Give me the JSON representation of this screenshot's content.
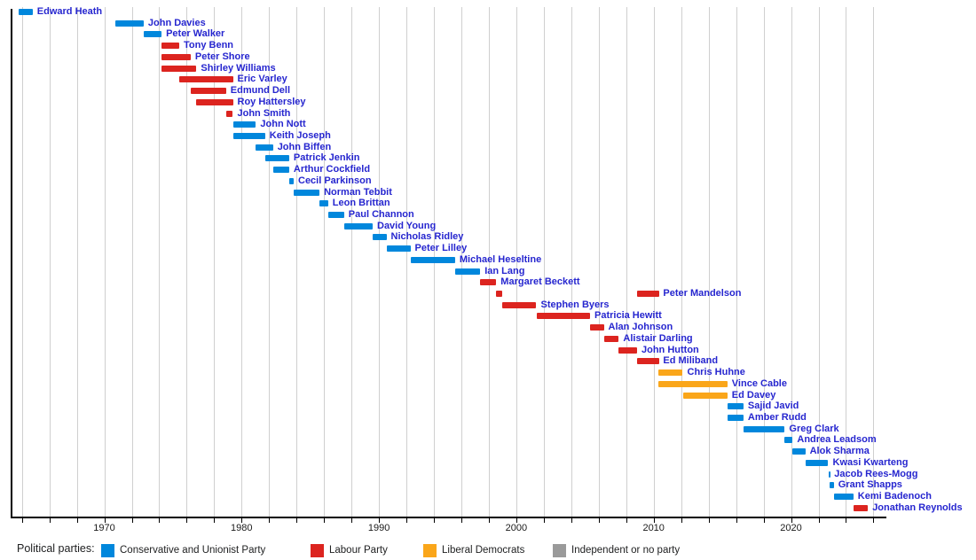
{
  "chart_data": {
    "type": "timeline",
    "title": "",
    "legend_title": "Political parties:",
    "x_axis": {
      "tick_years": [
        1970,
        1980,
        1990,
        2000,
        2010,
        2020
      ],
      "range": [
        1963.1,
        2026.8
      ],
      "gridlines": {
        "start": 1964,
        "end": 2026,
        "step": 2
      }
    },
    "parties": {
      "conservative": {
        "label": "Conservative and Unionist Party",
        "color": "#0087DC"
      },
      "labour": {
        "label": "Labour Party",
        "color": "#DC241F"
      },
      "libdem": {
        "label": "Liberal Democrats",
        "color": "#FAA61A"
      },
      "independent": {
        "label": "Independent or no party",
        "color": "#9A9A9A"
      }
    },
    "legend_order": [
      "conservative",
      "labour",
      "libdem",
      "independent"
    ],
    "people": [
      {
        "name": "Edward Heath",
        "party": "conservative",
        "terms": [
          [
            1963.79,
            1964.79
          ]
        ]
      },
      {
        "name": "John Davies",
        "party": "conservative",
        "terms": [
          [
            1970.79,
            1972.87
          ]
        ]
      },
      {
        "name": "Peter Walker",
        "party": "conservative",
        "terms": [
          [
            1972.87,
            1974.17
          ]
        ]
      },
      {
        "name": "Tony Benn",
        "party": "labour",
        "terms": [
          [
            1974.17,
            1975.46
          ]
        ]
      },
      {
        "name": "Peter Shore",
        "party": "labour",
        "terms": [
          [
            1974.17,
            1976.29
          ]
        ]
      },
      {
        "name": "Shirley Williams",
        "party": "labour",
        "terms": [
          [
            1974.17,
            1976.71
          ]
        ]
      },
      {
        "name": "Eric Varley",
        "party": "labour",
        "terms": [
          [
            1975.46,
            1979.37
          ]
        ]
      },
      {
        "name": "Edmund Dell",
        "party": "labour",
        "terms": [
          [
            1976.29,
            1978.87
          ]
        ]
      },
      {
        "name": "Roy Hattersley",
        "party": "labour",
        "terms": [
          [
            1976.71,
            1979.37
          ]
        ]
      },
      {
        "name": "John Smith",
        "party": "labour",
        "terms": [
          [
            1978.87,
            1979.37
          ]
        ]
      },
      {
        "name": "John Nott",
        "party": "conservative",
        "terms": [
          [
            1979.37,
            1981.04
          ]
        ]
      },
      {
        "name": "Keith Joseph",
        "party": "conservative",
        "terms": [
          [
            1979.37,
            1981.71
          ]
        ]
      },
      {
        "name": "John Biffen",
        "party": "conservative",
        "terms": [
          [
            1981.04,
            1982.29
          ]
        ]
      },
      {
        "name": "Patrick Jenkin",
        "party": "conservative",
        "terms": [
          [
            1981.71,
            1983.46
          ]
        ]
      },
      {
        "name": "Arthur Cockfield",
        "party": "conservative",
        "terms": [
          [
            1982.29,
            1983.46
          ]
        ]
      },
      {
        "name": "Cecil Parkinson",
        "party": "conservative",
        "terms": [
          [
            1983.46,
            1983.79
          ]
        ]
      },
      {
        "name": "Norman Tebbit",
        "party": "conservative",
        "terms": [
          [
            1983.79,
            1985.67
          ]
        ]
      },
      {
        "name": "Leon Brittan",
        "party": "conservative",
        "terms": [
          [
            1985.67,
            1986.3
          ]
        ]
      },
      {
        "name": "Paul Channon",
        "party": "conservative",
        "terms": [
          [
            1986.3,
            1987.46
          ]
        ]
      },
      {
        "name": "David Young",
        "party": "conservative",
        "terms": [
          [
            1987.46,
            1989.54
          ]
        ]
      },
      {
        "name": "Nicholas Ridley",
        "party": "conservative",
        "terms": [
          [
            1989.54,
            1990.54
          ]
        ]
      },
      {
        "name": "Peter Lilley",
        "party": "conservative",
        "terms": [
          [
            1990.54,
            1992.29
          ]
        ]
      },
      {
        "name": "Michael Heseltine",
        "party": "conservative",
        "terms": [
          [
            1992.29,
            1995.54
          ]
        ]
      },
      {
        "name": "Ian Lang",
        "party": "conservative",
        "terms": [
          [
            1995.54,
            1997.37
          ]
        ]
      },
      {
        "name": "Margaret Beckett",
        "party": "labour",
        "terms": [
          [
            1997.37,
            1998.54
          ]
        ]
      },
      {
        "name": "Peter Mandelson",
        "party": "labour",
        "terms": [
          [
            1998.54,
            1998.96
          ],
          [
            2008.79,
            2010.37
          ]
        ]
      },
      {
        "name": "Stephen Byers",
        "party": "labour",
        "terms": [
          [
            1998.96,
            2001.46
          ]
        ]
      },
      {
        "name": "Patricia Hewitt",
        "party": "labour",
        "terms": [
          [
            2001.46,
            2005.37
          ]
        ]
      },
      {
        "name": "Alan Johnson",
        "party": "labour",
        "terms": [
          [
            2005.37,
            2006.37
          ]
        ]
      },
      {
        "name": "Alistair Darling",
        "party": "labour",
        "terms": [
          [
            2006.37,
            2007.46
          ]
        ]
      },
      {
        "name": "John Hutton",
        "party": "labour",
        "terms": [
          [
            2007.46,
            2008.79
          ]
        ]
      },
      {
        "name": "Ed Miliband",
        "party": "labour",
        "terms": [
          [
            2008.79,
            2010.37
          ]
        ]
      },
      {
        "name": "Chris Huhne",
        "party": "libdem",
        "terms": [
          [
            2010.37,
            2012.12
          ]
        ]
      },
      {
        "name": "Vince Cable",
        "party": "libdem",
        "terms": [
          [
            2010.37,
            2015.37
          ]
        ]
      },
      {
        "name": "Ed Davey",
        "party": "libdem",
        "terms": [
          [
            2012.12,
            2015.37
          ]
        ]
      },
      {
        "name": "Sajid Javid",
        "party": "conservative",
        "terms": [
          [
            2015.37,
            2016.54
          ]
        ]
      },
      {
        "name": "Amber Rudd",
        "party": "conservative",
        "terms": [
          [
            2015.37,
            2016.54
          ]
        ]
      },
      {
        "name": "Greg Clark",
        "party": "conservative",
        "terms": [
          [
            2016.54,
            2019.54
          ]
        ]
      },
      {
        "name": "Andrea Leadsom",
        "party": "conservative",
        "terms": [
          [
            2019.54,
            2020.12
          ]
        ]
      },
      {
        "name": "Alok Sharma",
        "party": "conservative",
        "terms": [
          [
            2020.12,
            2021.04
          ]
        ]
      },
      {
        "name": "Kwasi Kwarteng",
        "party": "conservative",
        "terms": [
          [
            2021.04,
            2022.71
          ]
        ]
      },
      {
        "name": "Jacob Rees-Mogg",
        "party": "conservative",
        "terms": [
          [
            2022.71,
            2022.83
          ]
        ]
      },
      {
        "name": "Grant Shapps",
        "party": "conservative",
        "terms": [
          [
            2022.83,
            2023.12
          ]
        ]
      },
      {
        "name": "Kemi Badenoch",
        "party": "conservative",
        "terms": [
          [
            2023.12,
            2024.54
          ]
        ]
      },
      {
        "name": "Jonathan Reynolds",
        "party": "labour",
        "terms": [
          [
            2024.54,
            2025.6
          ]
        ]
      }
    ]
  }
}
